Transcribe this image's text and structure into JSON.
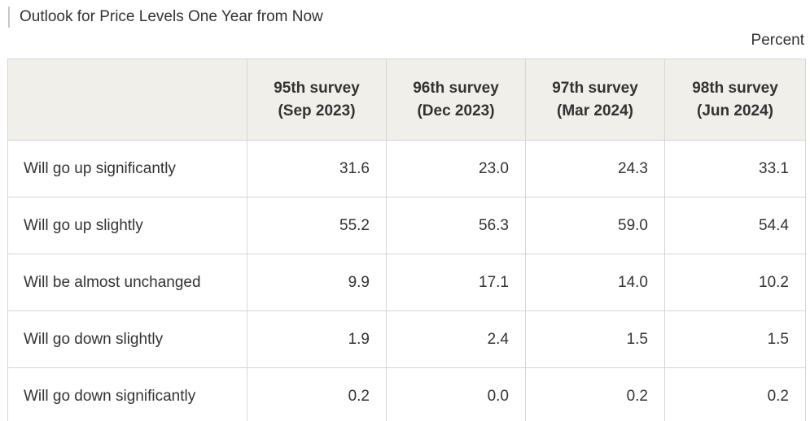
{
  "title": "Outlook for Price Levels One Year from Now",
  "unit": "Percent",
  "table": {
    "columns": [
      {
        "line1": "95th survey",
        "line2": "(Sep 2023)"
      },
      {
        "line1": "96th survey",
        "line2": "(Dec 2023)"
      },
      {
        "line1": "97th survey",
        "line2": "(Mar 2024)"
      },
      {
        "line1": "98th survey",
        "line2": "(Jun 2024)"
      }
    ],
    "rows": [
      {
        "label": "Will go up significantly",
        "values": [
          "31.6",
          "23.0",
          "24.3",
          "33.1"
        ]
      },
      {
        "label": "Will go up slightly",
        "values": [
          "55.2",
          "56.3",
          "59.0",
          "54.4"
        ]
      },
      {
        "label": "Will be almost unchanged",
        "values": [
          "9.9",
          "17.1",
          "14.0",
          "10.2"
        ]
      },
      {
        "label": "Will go down slightly",
        "values": [
          "1.9",
          "2.4",
          "1.5",
          "1.5"
        ]
      },
      {
        "label": "Will go down significantly",
        "values": [
          "0.2",
          "0.0",
          "0.2",
          "0.2"
        ]
      }
    ]
  }
}
